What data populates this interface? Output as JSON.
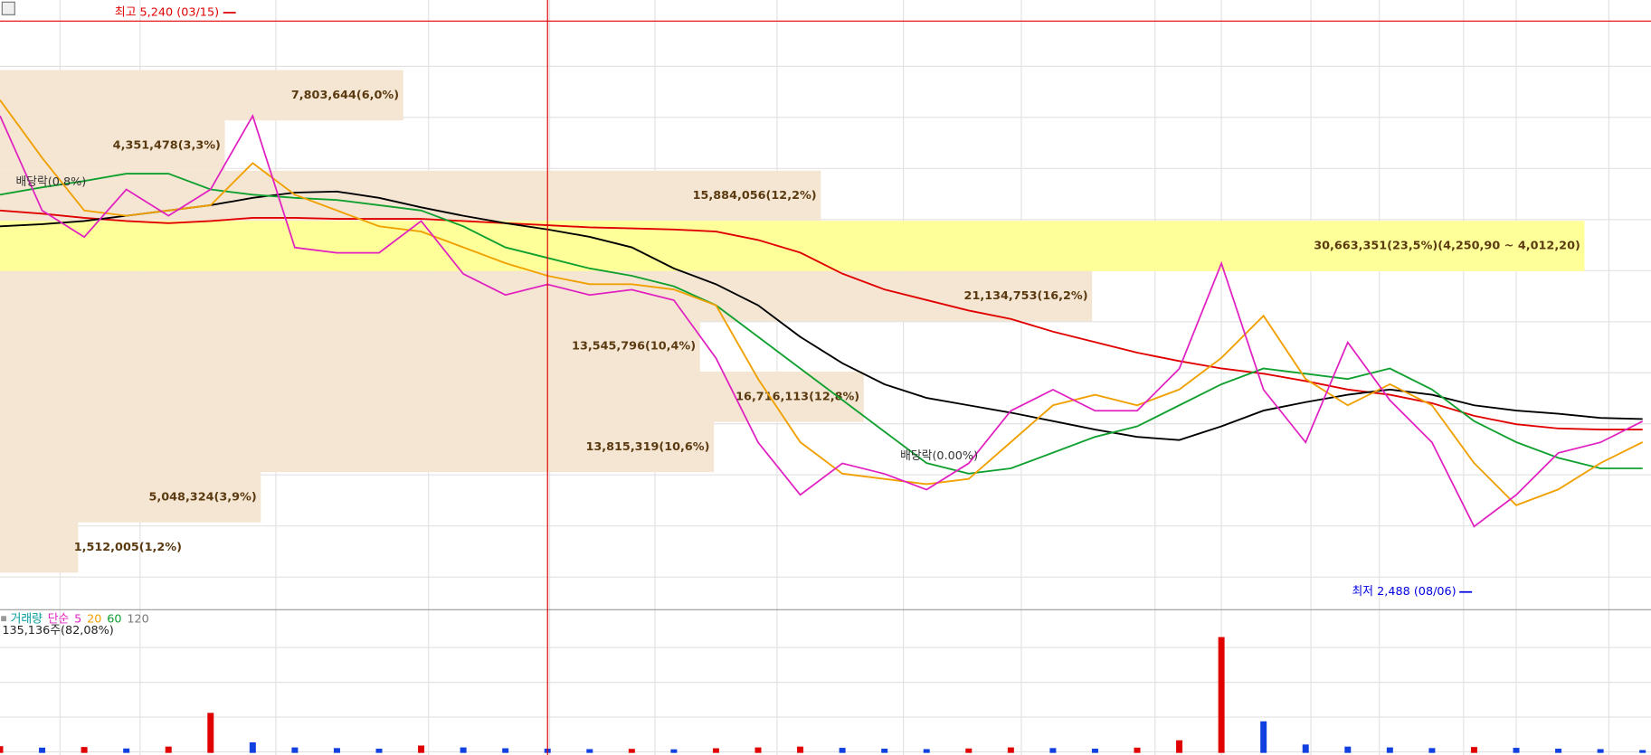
{
  "chart_data": {
    "type": "stock",
    "ylim": [
      2409,
      5300
    ],
    "series": [
      {
        "name": "5",
        "color": "#e020c0",
        "values": [
          4750,
          4300,
          4174,
          4400,
          4275,
          4400,
          4750,
          4124,
          4099,
          4099,
          4250,
          3999,
          3899,
          3949,
          3899,
          3924,
          3874,
          3599,
          3199,
          2949,
          3099,
          3049,
          2974,
          3099,
          3349,
          3449,
          3349,
          3349,
          3549,
          4049,
          3449,
          3199,
          3674,
          3399,
          3199,
          2799,
          2949,
          3149,
          3199,
          3299
        ]
      },
      {
        "name": "20",
        "color": "#f0a000",
        "values": [
          4825,
          4550,
          4300,
          4275,
          4300,
          4325,
          4525,
          4375,
          4300,
          4225,
          4200,
          4125,
          4050,
          3990,
          3950,
          3950,
          3925,
          3850,
          3500,
          3200,
          3050,
          3025,
          3000,
          3025,
          3200,
          3375,
          3425,
          3375,
          3450,
          3600,
          3800,
          3500,
          3375,
          3475,
          3375,
          3100,
          2900,
          2975,
          3100,
          3200
        ]
      },
      {
        "name": "60",
        "color": "#10a030",
        "values": [
          4375,
          4410,
          4440,
          4475,
          4475,
          4400,
          4375,
          4360,
          4350,
          4325,
          4300,
          4225,
          4125,
          4075,
          4025,
          3990,
          3940,
          3850,
          3700,
          3550,
          3400,
          3250,
          3100,
          3050,
          3075,
          3150,
          3225,
          3275,
          3375,
          3475,
          3550,
          3525,
          3500,
          3550,
          3450,
          3300,
          3200,
          3125,
          3075,
          3075
        ]
      },
      {
        "name": "120",
        "color": "#000000",
        "values": [
          4225,
          4235,
          4250,
          4275,
          4300,
          4325,
          4360,
          4385,
          4390,
          4360,
          4315,
          4275,
          4240,
          4210,
          4175,
          4125,
          4025,
          3950,
          3850,
          3700,
          3575,
          3475,
          3410,
          3375,
          3340,
          3300,
          3260,
          3225,
          3210,
          3275,
          3350,
          3390,
          3425,
          3450,
          3425,
          3375,
          3350,
          3335,
          3315,
          3310
        ]
      },
      {
        "color": "#e00000",
        "values": [
          4300,
          4285,
          4265,
          4250,
          4240,
          4250,
          4265,
          4265,
          4260,
          4260,
          4260,
          4250,
          4240,
          4230,
          4220,
          4215,
          4210,
          4200,
          4160,
          4100,
          4000,
          3925,
          3875,
          3825,
          3785,
          3725,
          3675,
          3625,
          3585,
          3550,
          3525,
          3490,
          3450,
          3425,
          3385,
          3325,
          3285,
          3265,
          3260,
          3260
        ]
      }
    ],
    "volume_profile": {
      "bins": [
        4967.0,
        4728.3,
        4489.6,
        4250.9,
        4012.2,
        3773.5,
        3534.8,
        3296.1,
        3057.4,
        2818.7,
        2580.0
      ],
      "values": [
        7803644,
        4351478,
        15884056,
        30663351,
        21134753,
        13545796,
        16716113,
        13815319,
        5048324,
        1512005
      ],
      "value_labels": [
        "7,803,644(6,0%)",
        "4,351,478(3,3%)",
        "15,884,056(12,2%)",
        "30,663,351(23,5%)(4,250,90 ~ 4,012,20)",
        "21,134,753(16,2%)",
        "13,545,796(10,4%)",
        "16,716,113(12,8%)",
        "13,815,319(10,6%)",
        "5,048,324(3,9%)",
        "1,512,005(1,2%)"
      ],
      "xlim": [
        0,
        31950000
      ],
      "color": "#f5e6d3",
      "highlight_color": "#ffff99"
    },
    "high": {
      "value": 5240,
      "label": "최고 5,240 (03/15)",
      "color": "#e00000"
    },
    "low": {
      "value": 2488,
      "label": "최저 2,488 (08/06)",
      "color": "#0000e0"
    },
    "notes": [
      "배당락(0.8%)",
      "배당락(0.00%)"
    ],
    "volume": {
      "name": "거래량",
      "color": "#009999",
      "ma_prefix": "단순",
      "ylim": [
        0,
        6000000
      ],
      "values": [
        320000,
        250000,
        280000,
        210000,
        300000,
        1900000,
        500000,
        260000,
        230000,
        200000,
        350000,
        260000,
        220000,
        200000,
        180000,
        190000,
        170000,
        220000,
        260000,
        300000,
        240000,
        200000,
        180000,
        210000,
        260000,
        230000,
        200000,
        250000,
        600000,
        5500000,
        1500000,
        400000,
        300000,
        260000,
        230000,
        280000,
        240000,
        200000,
        180000,
        135136
      ],
      "label": "135,136주(82,08%)"
    }
  }
}
